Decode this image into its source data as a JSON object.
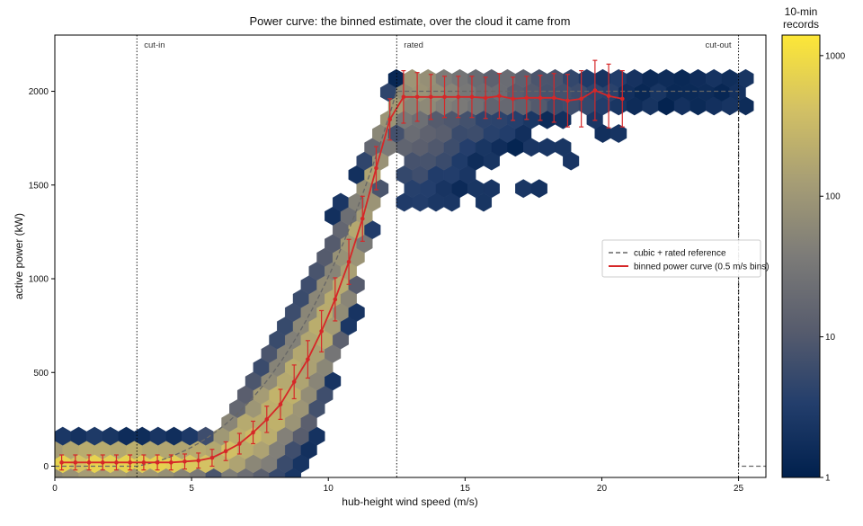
{
  "chart_data": {
    "type": "hexbin",
    "title": "Power curve: the binned estimate, over the cloud it came from",
    "xlabel": "hub-height wind speed (m/s)",
    "ylabel": "active power (kW)",
    "xlim": [
      0,
      26
    ],
    "ylim": [
      -60,
      2300
    ],
    "xticks": [
      0,
      5,
      10,
      15,
      20,
      25
    ],
    "yticks": [
      0,
      500,
      1000,
      1500,
      2000
    ],
    "grid": false,
    "annotations": [
      {
        "text": "cut-in",
        "x": 3
      },
      {
        "text": "rated",
        "x": 12.5
      },
      {
        "text": "cut-out",
        "x": 25
      }
    ],
    "legend": {
      "placement": "right",
      "entries": [
        {
          "label": "cubic + rated reference",
          "style": "dashed",
          "color": "#666666"
        },
        {
          "label": "binned power curve (0.5 m/s bins)",
          "style": "solid",
          "color": "#d62728"
        }
      ]
    },
    "colorbar": {
      "title_line1": "10-min",
      "title_line2": "records",
      "scale": "log",
      "range": [
        1,
        1400
      ],
      "ticks": [
        "1",
        "10",
        "100",
        "1000"
      ],
      "colormap": [
        "#00204d",
        "#233e6c",
        "#575c6d",
        "#7c7b78",
        "#a69d75",
        "#d3c164",
        "#fde737"
      ]
    },
    "reference_curve": {
      "rated_power": 2000,
      "cut_in": 3,
      "rated_speed": 12.5,
      "cut_out": 25
    },
    "series": [
      {
        "name": "binned power curve (0.5 m/s bins)",
        "x": [
          0.25,
          0.75,
          1.25,
          1.75,
          2.25,
          2.75,
          3.25,
          3.75,
          4.25,
          4.75,
          5.25,
          5.75,
          6.25,
          6.75,
          7.25,
          7.75,
          8.25,
          8.75,
          9.25,
          9.75,
          10.25,
          10.75,
          11.25,
          11.75,
          12.25,
          12.75,
          13.25,
          13.75,
          14.25,
          14.75,
          15.25,
          15.75,
          16.25,
          16.75,
          17.25,
          17.75,
          18.25,
          18.75,
          19.25,
          19.75,
          20.25,
          20.75
        ],
        "y": [
          20,
          20,
          20,
          20,
          20,
          20,
          20,
          20,
          20,
          25,
          30,
          45,
          80,
          120,
          180,
          250,
          330,
          450,
          570,
          720,
          890,
          1090,
          1320,
          1590,
          1850,
          1970,
          1970,
          1970,
          1970,
          1970,
          1970,
          1965,
          1975,
          1960,
          1965,
          1965,
          1965,
          1950,
          1960,
          2005,
          1975,
          1960
        ],
        "err": [
          40,
          40,
          40,
          40,
          40,
          40,
          40,
          40,
          40,
          40,
          40,
          45,
          50,
          55,
          60,
          70,
          80,
          90,
          100,
          110,
          115,
          120,
          120,
          115,
          110,
          140,
          130,
          120,
          110,
          110,
          110,
          110,
          120,
          115,
          115,
          120,
          130,
          140,
          150,
          160,
          170,
          150
        ]
      }
    ]
  }
}
